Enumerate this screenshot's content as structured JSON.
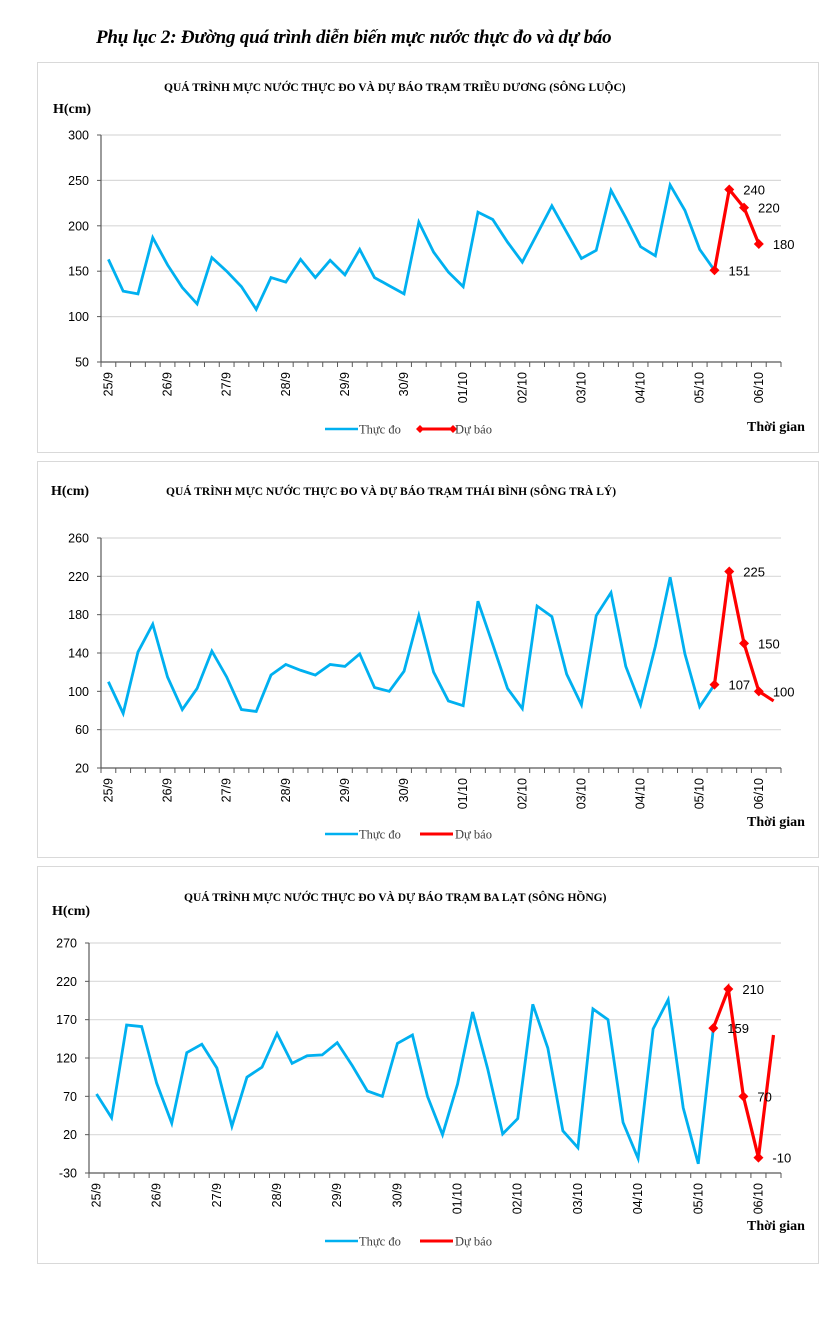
{
  "page": {
    "heading": "Phụ lục 2: Đường quá trình diễn biến mực nước thực đo và dự báo"
  },
  "chart_data": [
    {
      "type": "line",
      "title": "QUÁ TRÌNH MỰC NƯỚC THỰC ĐO VÀ DỰ BÁO TRẠM TRIỀU DƯƠNG (SÔNG LUỘC)",
      "ylabel": "H(cm)",
      "xlabel": "Thời gian",
      "ylim": [
        50,
        300
      ],
      "yticks": [
        50,
        100,
        150,
        200,
        250,
        300
      ],
      "grid": true,
      "x_count": 46,
      "x_tick_labels": [
        "25/9",
        "26/9",
        "27/9",
        "28/9",
        "29/9",
        "30/9",
        "01/10",
        "02/10",
        "03/10",
        "04/10",
        "05/10",
        "06/10"
      ],
      "x_tick_every": 4,
      "legend_position": "bottom",
      "legend_forecast_markers": true,
      "series": [
        {
          "name": "Thực đo",
          "color": "#00b0f0",
          "start_index": 0,
          "values": [
            163,
            128,
            125,
            187,
            157,
            132,
            114,
            165,
            150,
            133,
            108,
            143,
            138,
            163,
            143,
            162,
            146,
            174,
            143,
            134,
            125,
            204,
            171,
            149,
            133,
            215,
            207,
            182,
            160,
            191,
            222,
            193,
            164,
            173,
            239,
            209,
            177,
            167,
            245,
            217,
            174,
            151
          ]
        },
        {
          "name": "Dự báo",
          "color": "#ff0000",
          "start_index": 41,
          "values": [
            151,
            240,
            220,
            180
          ],
          "markers": [
            true,
            true,
            true,
            true
          ],
          "labels": [
            "151",
            "240",
            "220",
            "180"
          ]
        }
      ]
    },
    {
      "type": "line",
      "title": "QUÁ TRÌNH MỰC NƯỚC THỰC ĐO VÀ DỰ BÁO TRẠM THÁI BÌNH (SÔNG TRÀ LÝ)",
      "ylabel": "H(cm)",
      "xlabel": "Thời gian",
      "ylim": [
        20,
        260
      ],
      "yticks": [
        20,
        60,
        100,
        140,
        180,
        220,
        260
      ],
      "grid": true,
      "x_count": 46,
      "x_tick_labels": [
        "25/9",
        "26/9",
        "27/9",
        "28/9",
        "29/9",
        "30/9",
        "01/10",
        "02/10",
        "03/10",
        "04/10",
        "05/10",
        "06/10"
      ],
      "x_tick_every": 4,
      "legend_position": "bottom",
      "legend_forecast_markers": false,
      "series": [
        {
          "name": "Thực đo",
          "color": "#00b0f0",
          "start_index": 0,
          "values": [
            110,
            77,
            141,
            170,
            115,
            81,
            103,
            142,
            115,
            81,
            79,
            117,
            128,
            122,
            117,
            128,
            126,
            139,
            104,
            100,
            121,
            179,
            120,
            90,
            85,
            194,
            149,
            103,
            82,
            189,
            178,
            118,
            86,
            179,
            203,
            126,
            86,
            147,
            219,
            139,
            84,
            107
          ]
        },
        {
          "name": "Dự báo",
          "color": "#ff0000",
          "start_index": 41,
          "values": [
            107,
            225,
            150,
            100,
            90
          ],
          "markers": [
            true,
            true,
            true,
            true,
            false
          ],
          "labels": [
            "107",
            "225",
            "150",
            "100",
            ""
          ]
        }
      ]
    },
    {
      "type": "line",
      "title": "QUÁ TRÌNH MỰC NƯỚC THỰC ĐO VÀ DỰ BÁO TRẠM BA LẠT (SÔNG HỒNG)",
      "ylabel": "H(cm)",
      "xlabel": "Thời gian",
      "ylim": [
        -30,
        270
      ],
      "yticks": [
        -30,
        20,
        70,
        120,
        170,
        220,
        270
      ],
      "grid": true,
      "x_count": 46,
      "x_tick_labels": [
        "25/9",
        "26/9",
        "27/9",
        "28/9",
        "29/9",
        "30/9",
        "01/10",
        "02/10",
        "03/10",
        "04/10",
        "05/10",
        "06/10"
      ],
      "x_tick_every": 4,
      "legend_position": "bottom",
      "legend_forecast_markers": false,
      "series": [
        {
          "name": "Thực đo",
          "color": "#00b0f0",
          "start_index": 0,
          "values": [
            73,
            42,
            163,
            161,
            87,
            35,
            127,
            138,
            107,
            31,
            95,
            108,
            152,
            113,
            123,
            124,
            140,
            110,
            77,
            70,
            139,
            150,
            70,
            20,
            86,
            180,
            106,
            21,
            41,
            190,
            133,
            25,
            3,
            184,
            170,
            36,
            -11,
            158,
            196,
            55,
            -18,
            158
          ]
        },
        {
          "name": "Dự báo",
          "color": "#ff0000",
          "start_index": 41,
          "values": [
            159,
            210,
            70,
            -10,
            150
          ],
          "markers": [
            true,
            true,
            true,
            true,
            false
          ],
          "labels": [
            "159",
            "210",
            "70",
            "-10",
            ""
          ]
        }
      ]
    }
  ]
}
